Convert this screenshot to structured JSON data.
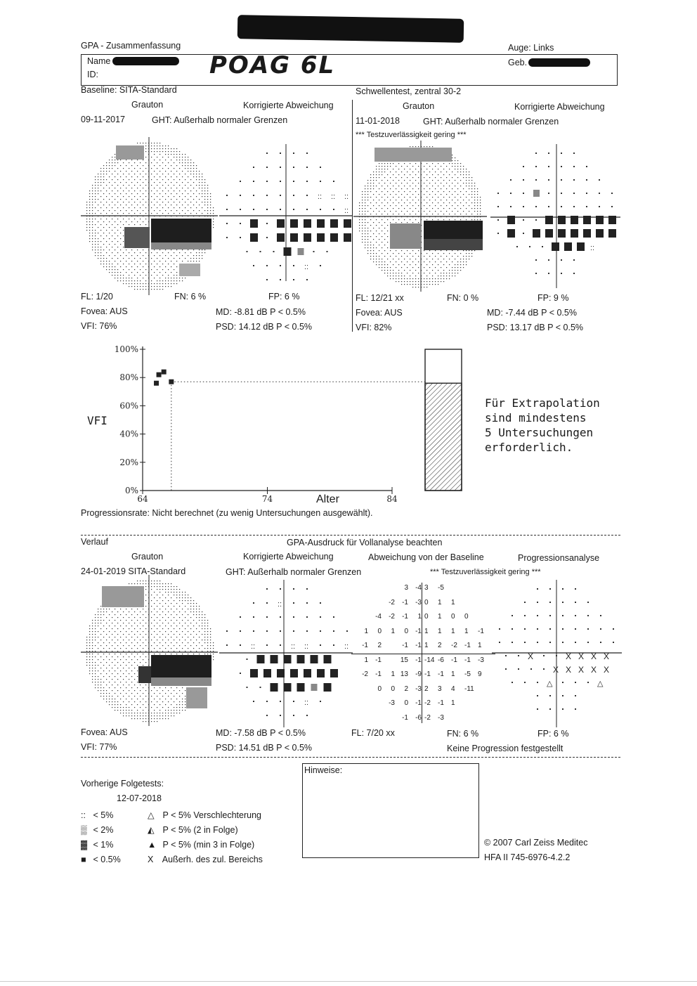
{
  "header": {
    "title": "GPA - Zusammenfassung",
    "eye": "Auge: Links",
    "name_label": "Name",
    "id_label": "ID:",
    "birth_label": "Geb.",
    "handwritten": "POAG 6L",
    "baseline_label": "Baseline: SITA-Standard",
    "test_type": "Schwellentest, zentral 30-2"
  },
  "exam1": {
    "grauton": "Grauton",
    "korr": "Korrigierte Abweichung",
    "date": "09-11-2017",
    "ght": "GHT: Außerhalb normaler Grenzen",
    "fl": "FL: 1/20",
    "fn": "FN:  6 %",
    "fp": "FP:  6 %",
    "fovea": "Fovea: AUS",
    "md": "MD:  -8.81 dB  P < 0.5%",
    "vfi": "VFI:  76%",
    "psd": "PSD:  14.12 dB  P < 0.5%"
  },
  "exam2": {
    "grauton": "Grauton",
    "korr": "Korrigierte Abweichung",
    "date": "11-01-2018",
    "ght": "GHT: Außerhalb normaler Grenzen",
    "reliability": "*** Testzuverlässigkeit gering ***",
    "fl": "FL: 12/21 xx",
    "fn": "FN:  0 %",
    "fp": "FP:  9 %",
    "fovea": "Fovea: AUS",
    "md": "MD:  -7.44 dB  P < 0.5%",
    "vfi": "VFI:  82%",
    "psd": "PSD:  13.17 dB  P < 0.5%"
  },
  "chart_data": {
    "type": "scatter",
    "ylabel": "VFI",
    "xlabel": "Alter",
    "y_ticks": [
      "100%",
      "80%",
      "60%",
      "40%",
      "20%",
      "0%"
    ],
    "x_ticks": [
      "64",
      "74",
      "84"
    ],
    "xlim": [
      64,
      84
    ],
    "ylim": [
      0,
      100
    ],
    "points": [
      {
        "x": 65.1,
        "y": 76
      },
      {
        "x": 65.3,
        "y": 82
      },
      {
        "x": 65.7,
        "y": 84
      },
      {
        "x": 66.3,
        "y": 77
      }
    ],
    "extrapolation_level": 77,
    "bar_value": 76
  },
  "extrapolation_note": [
    "Für Extrapolation",
    "sind mindestens",
    "5 Untersuchungen",
    "erforderlich."
  ],
  "progression_rate": "Progressionsrate: Nicht berechnet (zu wenig Untersuchungen ausgewählt).",
  "verlauf": {
    "label": "Verlauf",
    "gpa_note": "GPA-Ausdruck für Vollanalyse beachten",
    "grauton": "Grauton",
    "korr": "Korrigierte Abweichung",
    "baseline_dev": "Abweichung von der Baseline",
    "prog_analysis": "Progressionsanalyse",
    "date": "24-01-2019 SITA-Standard",
    "ght": "GHT: Außerhalb normaler Grenzen",
    "reliability": "*** Testzuverlässigkeit gering ***",
    "fovea": "Fovea: AUS",
    "md": "MD:  -7.58 dB  P < 0.5%",
    "fl": "FL: 7/20 xx",
    "fn": "FN:  6 %",
    "fp": "FP:  6 %",
    "vfi": "VFI:  77%",
    "psd": "PSD:  14.51 dB  P < 0.5%",
    "no_progression": "Keine Progression festgestellt",
    "baseline_numbers": [
      [
        "3",
        "-4",
        "|",
        "3",
        "-5"
      ],
      [
        "-2",
        "-1",
        "-3",
        "|",
        "0",
        "1",
        "1"
      ],
      [
        "-4",
        "-2",
        "-1",
        "1",
        "|",
        "0",
        "1",
        "0",
        "0"
      ],
      [
        "1",
        "0",
        "1",
        "0",
        "-1",
        "|",
        "1",
        "1",
        "1",
        "1",
        "-1"
      ],
      [
        "-1",
        "2",
        "",
        "-1",
        "-1",
        "|",
        "1",
        "2",
        "-2",
        "-1",
        "1"
      ],
      [
        "1",
        "-1",
        "",
        "15",
        "-1",
        "|",
        "-14",
        "-6",
        "-1",
        "-1",
        "-3"
      ],
      [
        "-2",
        "-1",
        "1",
        "13",
        "-9",
        "|",
        "-1",
        "-1",
        "1",
        "-5",
        "9"
      ],
      [
        "0",
        "0",
        "2",
        "-3",
        "|",
        "2",
        "3",
        "4",
        "-11"
      ],
      [
        "-3",
        "0",
        "-1",
        "|",
        "-2",
        "-1",
        "1"
      ],
      [
        "-1",
        "-6",
        "|",
        "-2",
        "-3"
      ]
    ]
  },
  "notes": {
    "hinweise": "Hinweise:",
    "prev_tests": "Vorherige Folgetests:",
    "prev_date": "12-07-2018"
  },
  "legend": [
    {
      "symbol": "::",
      "text": "< 5%"
    },
    {
      "symbol": "▒",
      "text": "< 2%"
    },
    {
      "symbol": "▓",
      "text": "< 1%"
    },
    {
      "symbol": "■",
      "text": "< 0.5%"
    }
  ],
  "legend_right": [
    {
      "symbol": "△",
      "text": "P < 5% Verschlechterung"
    },
    {
      "symbol": "◭",
      "text": "P < 5% (2 in Folge)"
    },
    {
      "symbol": "▲",
      "text": "P < 5% (min 3 in Folge)"
    },
    {
      "symbol": "X",
      "text": "Außerh. des zul. Bereichs"
    }
  ],
  "footer": {
    "copyright": "© 2007 Carl Zeiss Meditec",
    "model": "HFA II 745-6976-4.2.2"
  }
}
